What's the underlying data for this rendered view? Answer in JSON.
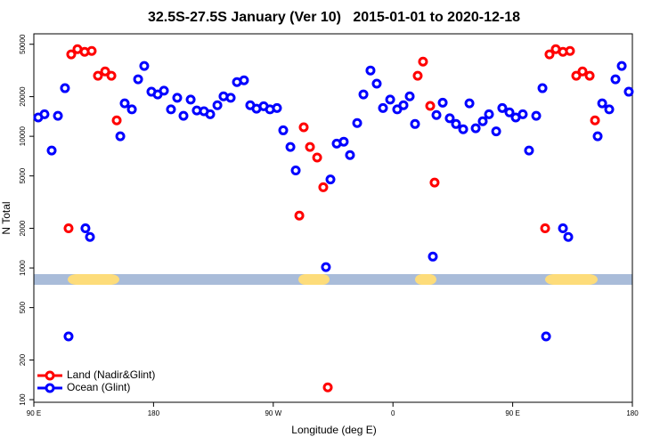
{
  "chart_data": {
    "type": "scatter",
    "title": "32.5S-27.5S January (Ver 10)   2015-01-01 to 2020-12-18",
    "x_label": "Longitude (deg E)",
    "y_label": "N Total",
    "log_y": true,
    "legend": "bottom-left",
    "xlim": [
      90,
      540
    ],
    "xticks": [
      {
        "value": 90,
        "label": "90 E"
      },
      180,
      {
        "value": 270,
        "label": "90 W"
      },
      {
        "value": 360,
        "label": "0"
      },
      {
        "value": 450,
        "label": "90 E"
      },
      {
        "value": 540,
        "label": "180"
      }
    ],
    "ylim": [
      95.5,
      60000
    ],
    "yticks": [
      100,
      200,
      500,
      1000,
      2000,
      5000,
      10000,
      20000,
      50000
    ],
    "series": [
      {
        "name": "Land (Nadir&Glint)",
        "color": "#ff0000",
        "x": [
          116.1,
          118.1,
          122.8,
          128.2,
          133.5,
          138.2,
          143.6,
          148.3,
          152.3,
          289.6,
          292.9,
          297.6,
          303.0,
          307.6,
          311.0,
          378.6,
          382.6,
          388.0,
          391.3,
          474.4,
          477.7,
          482.4,
          487.8,
          493.1,
          497.8,
          502.5,
          507.9,
          511.9
        ],
        "values": [
          2000,
          41900,
          45900,
          43800,
          44500,
          28800,
          31100,
          28800,
          13200,
          2500,
          11700,
          8300,
          6900,
          4100,
          124,
          28800,
          36900,
          17000,
          4450,
          2000,
          41900,
          45900,
          43800,
          44500,
          28800,
          31100,
          28800,
          13200
        ]
      },
      {
        "name": "Ocean (Glint)",
        "color": "#0000ff",
        "x": [
          93.3,
          98.0,
          103.4,
          108.1,
          113.4,
          116.1,
          128.8,
          132.2,
          155.0,
          158.3,
          163.7,
          168.4,
          173.0,
          178.4,
          183.1,
          187.8,
          193.1,
          197.8,
          202.5,
          207.9,
          212.5,
          217.9,
          222.6,
          228.0,
          232.6,
          238.0,
          242.7,
          248.0,
          252.7,
          257.4,
          262.8,
          267.5,
          272.8,
          277.5,
          282.9,
          286.9,
          309.6,
          313.0,
          317.7,
          323.0,
          327.7,
          333.1,
          337.8,
          343.1,
          347.8,
          352.5,
          357.9,
          363.2,
          367.9,
          372.6,
          376.6,
          390.0,
          392.7,
          397.4,
          402.7,
          407.4,
          412.8,
          417.5,
          422.2,
          427.5,
          432.2,
          437.6,
          442.2,
          447.6,
          452.3,
          457.6,
          462.3,
          467.7,
          472.4,
          475.1,
          487.8,
          491.8,
          513.9,
          517.3,
          522.6,
          527.3,
          532.0,
          537.3
        ],
        "values": [
          13900,
          14700,
          7800,
          14300,
          23200,
          302,
          2000,
          1720,
          10000,
          17800,
          16000,
          27100,
          34200,
          21800,
          20800,
          22200,
          16000,
          19600,
          14300,
          19000,
          15700,
          15500,
          14700,
          17200,
          20100,
          19600,
          25800,
          26600,
          17200,
          16200,
          16900,
          16000,
          16400,
          11100,
          8300,
          5500,
          1015,
          4700,
          8800,
          9100,
          7200,
          12600,
          20800,
          31600,
          25100,
          16400,
          19000,
          16000,
          17200,
          20100,
          12400,
          1220,
          14500,
          18000,
          13700,
          12400,
          11300,
          17800,
          11500,
          13000,
          14700,
          10900,
          16400,
          15200,
          13900,
          14700,
          7800,
          14300,
          23200,
          302,
          2000,
          1720,
          10000,
          17800,
          16000,
          27100,
          34200,
          21800
        ]
      }
    ]
  }
}
